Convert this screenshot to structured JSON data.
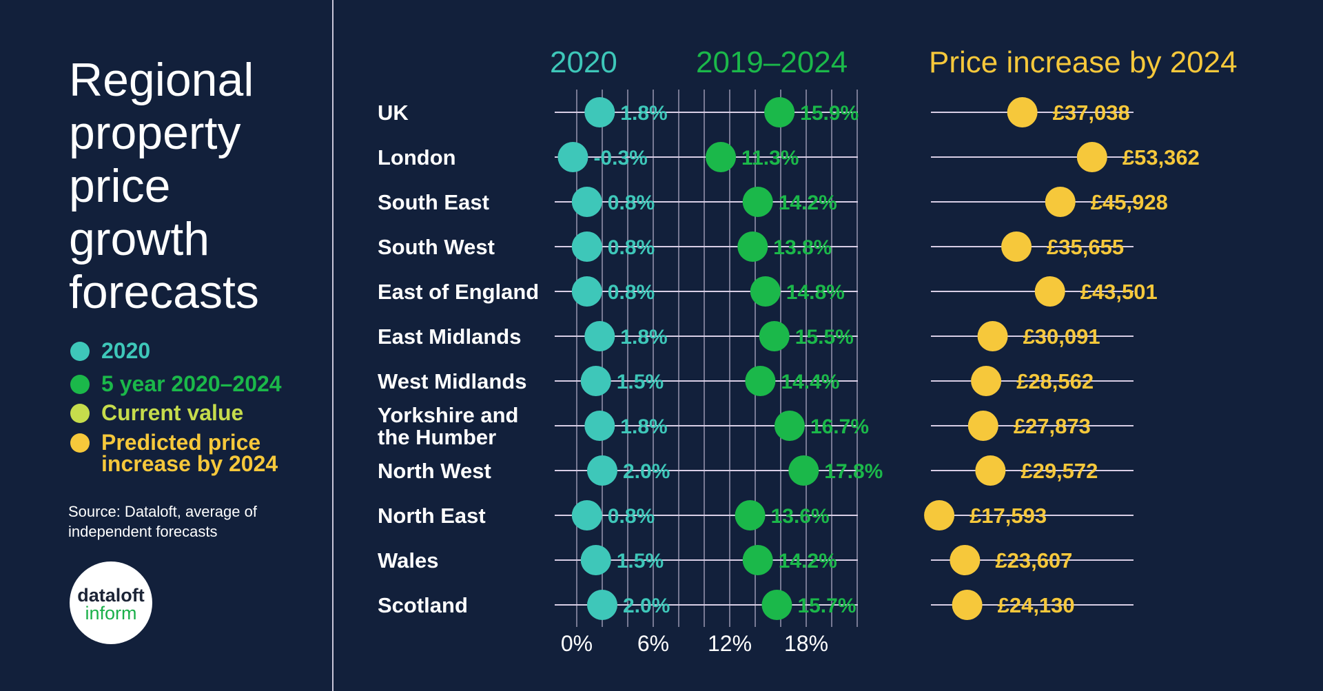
{
  "title": "Regional property price growth forecasts",
  "legend": [
    {
      "label": "2020",
      "color": "#3ec7b9"
    },
    {
      "label": "5 year 2020–2024",
      "color": "#1bb84a"
    },
    {
      "label": "Current value",
      "color": "#c6dc4c"
    },
    {
      "label": "Predicted price increase by 2024",
      "color": "#f6c83b"
    }
  ],
  "source": "Source: Dataloft, average of independent forecasts",
  "logo": {
    "line1": "dataloft",
    "line2": "inform"
  },
  "chart_data": {
    "type": "scatter",
    "panels": [
      {
        "title": "2020",
        "series": "growth_2020",
        "color": "#3ec7b9"
      },
      {
        "title": "2019–2024",
        "series": "growth_2019_2024",
        "color": "#1bb84a"
      },
      {
        "title": "Price increase by 2024",
        "series": "price_increase",
        "color": "#f6c83b"
      }
    ],
    "categories": [
      "UK",
      "London",
      "South East",
      "South West",
      "East of England",
      "East Midlands",
      "West Midlands",
      "Yorkshire and the Humber",
      "North West",
      "North East",
      "Wales",
      "Scotland"
    ],
    "growth_2020": [
      1.8,
      -0.3,
      0.8,
      0.8,
      0.8,
      1.8,
      1.5,
      1.8,
      2.0,
      0.8,
      1.5,
      2.0
    ],
    "growth_2019_2024": [
      15.9,
      11.3,
      14.2,
      13.8,
      14.8,
      15.5,
      14.4,
      16.7,
      17.8,
      13.6,
      14.2,
      15.7
    ],
    "price_increase": [
      37038,
      53362,
      45928,
      35655,
      43501,
      30091,
      28562,
      27873,
      29572,
      17593,
      23607,
      24130
    ],
    "price_labels": [
      "£37,038",
      "£53,362",
      "£45,928",
      "£35,655",
      "£43,501",
      "£30,091",
      "£28,562",
      "£27,873",
      "£29,572",
      "£17,593",
      "£23,607",
      "£24,130"
    ],
    "x_ticks": [
      "0%",
      "6%",
      "12%",
      "18%"
    ],
    "x_tick_values": [
      0,
      6,
      12,
      18
    ],
    "xlim": [
      0,
      22
    ],
    "grid_step": 2,
    "grid": true
  }
}
